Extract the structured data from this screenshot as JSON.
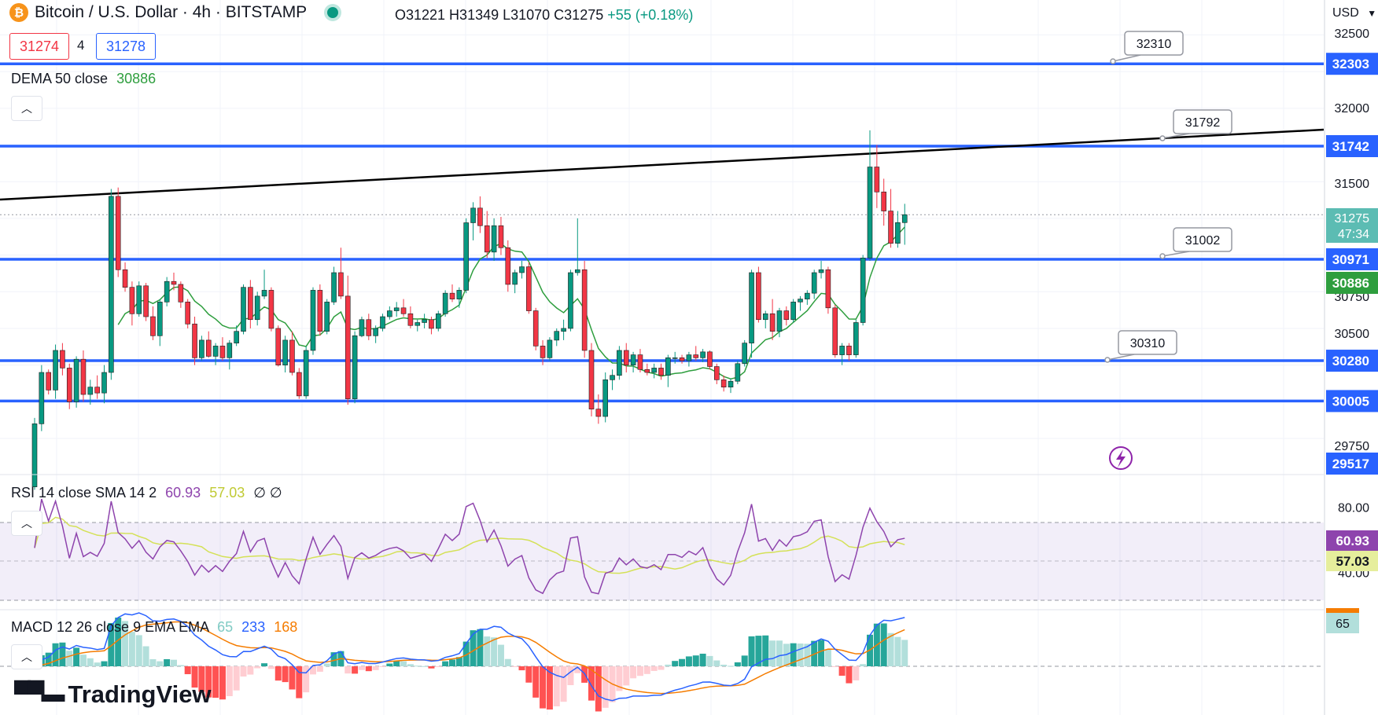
{
  "header": {
    "symbol_title": "Bitcoin / U.S. Dollar · 4h · BITSTAMP",
    "btc_icon_glyph": "₿",
    "ohlc": "O31221 H31349 L31070 C31275",
    "change": "+55 (+0.18%)",
    "bid": "31274",
    "spread": "4",
    "ask": "31278"
  },
  "indicators": {
    "dema_label": "DEMA 50 close",
    "dema_value": "30886",
    "rsi_label": "RSI 14 close SMA 14 2",
    "rsi_value": "60.93",
    "rsi_sma_value": "57.03",
    "rsi_empty": "∅ ∅",
    "macd_label": "MACD 12 26 close 9 EMA EMA",
    "macd_hist": "65",
    "macd_line": "233",
    "macd_signal": "168"
  },
  "price_axis": {
    "currency": "USD",
    "ticks": [
      "32500",
      "32000",
      "31500",
      "30750",
      "30500",
      "29750"
    ],
    "level_labels": [
      "32303",
      "31742",
      "30971",
      "30280",
      "30005",
      "29517"
    ],
    "current_price": "31275",
    "countdown": "47:34",
    "dema_tag": "30886"
  },
  "rsi_axis": {
    "ticks": [
      "80.00",
      "40.00"
    ],
    "rsi_tag": "60.93",
    "sma_tag": "57.03"
  },
  "macd_axis": {
    "hist_tag": "65"
  },
  "callouts": [
    "32310",
    "31792",
    "31002",
    "30310"
  ],
  "branding": {
    "logo_text": "TradingView"
  },
  "colors": {
    "up": "#089981",
    "down": "#f23645",
    "level_line": "#2962ff",
    "trend_line": "#000000",
    "dema": "#2e9e3e",
    "rsi": "#8e44ad",
    "rsi_sma": "#d4e157",
    "macd_line": "#2962ff",
    "macd_signal": "#f57c00",
    "hist_up_strong": "#26a69a",
    "hist_up_weak": "#b2dfdb",
    "hist_down_strong": "#ff5252",
    "hist_down_weak": "#ffcdd2"
  },
  "chart_data": {
    "type": "candlestick",
    "interval": "4h",
    "price_range": [
      29450,
      32700
    ],
    "horizontal_levels": [
      32303,
      31742,
      30971,
      30280,
      30005
    ],
    "trend_line_label": 31792,
    "callout_prices": [
      32310,
      31792,
      31002,
      30310
    ],
    "candles_ohlc": [
      [
        29420,
        29890,
        29400,
        29850
      ],
      [
        29850,
        30250,
        29800,
        30200
      ],
      [
        30200,
        30220,
        30050,
        30080
      ],
      [
        30080,
        30390,
        30020,
        30350
      ],
      [
        30350,
        30400,
        30180,
        30230
      ],
      [
        30230,
        30260,
        29950,
        30000
      ],
      [
        30000,
        30310,
        29960,
        30290
      ],
      [
        30290,
        30350,
        30000,
        30050
      ],
      [
        30050,
        30150,
        29980,
        30100
      ],
      [
        30100,
        30180,
        30020,
        30060
      ],
      [
        30060,
        30250,
        29990,
        30200
      ],
      [
        30200,
        31450,
        30150,
        31400
      ],
      [
        31400,
        31460,
        30850,
        30900
      ],
      [
        30900,
        30950,
        30750,
        30780
      ],
      [
        30780,
        30820,
        30520,
        30600
      ],
      [
        30600,
        30820,
        30580,
        30790
      ],
      [
        30790,
        30810,
        30550,
        30580
      ],
      [
        30580,
        30650,
        30420,
        30450
      ],
      [
        30450,
        30700,
        30380,
        30680
      ],
      [
        30680,
        30850,
        30650,
        30820
      ],
      [
        30820,
        30880,
        30760,
        30800
      ],
      [
        30800,
        30820,
        30640,
        30680
      ],
      [
        30680,
        30700,
        30500,
        30530
      ],
      [
        30530,
        30580,
        30250,
        30300
      ],
      [
        30300,
        30450,
        30280,
        30420
      ],
      [
        30420,
        30480,
        30300,
        30310
      ],
      [
        30310,
        30400,
        30250,
        30380
      ],
      [
        30380,
        30440,
        30280,
        30300
      ],
      [
        30300,
        30420,
        30220,
        30400
      ],
      [
        30400,
        30520,
        30380,
        30480
      ],
      [
        30480,
        30800,
        30460,
        30780
      ],
      [
        30780,
        30830,
        30500,
        30560
      ],
      [
        30560,
        30750,
        30520,
        30720
      ],
      [
        30720,
        30900,
        30700,
        30760
      ],
      [
        30760,
        30780,
        30480,
        30500
      ],
      [
        30500,
        30520,
        30240,
        30250
      ],
      [
        30250,
        30450,
        30200,
        30420
      ],
      [
        30420,
        30480,
        30180,
        30200
      ],
      [
        30200,
        30230,
        30020,
        30040
      ],
      [
        30040,
        30380,
        30020,
        30350
      ],
      [
        30350,
        30780,
        30320,
        30760
      ],
      [
        30760,
        30800,
        30450,
        30480
      ],
      [
        30480,
        30700,
        30460,
        30680
      ],
      [
        30680,
        30920,
        30660,
        30880
      ],
      [
        30880,
        31050,
        30700,
        30720
      ],
      [
        30720,
        30860,
        29980,
        30020
      ],
      [
        30020,
        30480,
        29990,
        30450
      ],
      [
        30450,
        30580,
        30440,
        30560
      ],
      [
        30560,
        30600,
        30420,
        30450
      ],
      [
        30450,
        30520,
        30400,
        30500
      ],
      [
        30500,
        30600,
        30480,
        30580
      ],
      [
        30580,
        30650,
        30560,
        30620
      ],
      [
        30620,
        30680,
        30580,
        30640
      ],
      [
        30640,
        30700,
        30580,
        30600
      ],
      [
        30600,
        30650,
        30500,
        30520
      ],
      [
        30520,
        30560,
        30480,
        30540
      ],
      [
        30540,
        30600,
        30500,
        30560
      ],
      [
        30560,
        30580,
        30460,
        30500
      ],
      [
        30500,
        30620,
        30480,
        30600
      ],
      [
        30600,
        30760,
        30580,
        30740
      ],
      [
        30740,
        30800,
        30680,
        30700
      ],
      [
        30700,
        30780,
        30640,
        30760
      ],
      [
        30760,
        31250,
        30740,
        31220
      ],
      [
        31220,
        31360,
        31100,
        31320
      ],
      [
        31320,
        31400,
        31150,
        31200
      ],
      [
        31200,
        31300,
        30980,
        31020
      ],
      [
        31020,
        31250,
        30960,
        31200
      ],
      [
        31200,
        31260,
        31000,
        31050
      ],
      [
        31050,
        31100,
        30750,
        30800
      ],
      [
        30800,
        30900,
        30740,
        30880
      ],
      [
        30880,
        30960,
        30840,
        30920
      ],
      [
        30920,
        30950,
        30600,
        30620
      ],
      [
        30620,
        30640,
        30350,
        30380
      ],
      [
        30380,
        30420,
        30250,
        30300
      ],
      [
        30300,
        30440,
        30280,
        30420
      ],
      [
        30420,
        30500,
        30380,
        30480
      ],
      [
        30480,
        30560,
        30420,
        30500
      ],
      [
        30500,
        30900,
        30480,
        30880
      ],
      [
        30880,
        31250,
        30860,
        30900
      ],
      [
        30900,
        30960,
        30300,
        30350
      ],
      [
        30350,
        30400,
        29900,
        29950
      ],
      [
        29950,
        30050,
        29850,
        29900
      ],
      [
        29900,
        30200,
        29860,
        30150
      ],
      [
        30150,
        30220,
        30080,
        30180
      ],
      [
        30180,
        30380,
        30150,
        30350
      ],
      [
        30350,
        30400,
        30200,
        30250
      ],
      [
        30250,
        30340,
        30200,
        30320
      ],
      [
        30320,
        30360,
        30200,
        30220
      ],
      [
        30220,
        30260,
        30180,
        30200
      ],
      [
        30200,
        30260,
        30160,
        30230
      ],
      [
        30230,
        30260,
        30150,
        30180
      ],
      [
        30180,
        30320,
        30100,
        30300
      ],
      [
        30300,
        30340,
        30260,
        30300
      ],
      [
        30300,
        30320,
        30260,
        30280
      ],
      [
        30280,
        30340,
        30240,
        30320
      ],
      [
        30320,
        30380,
        30280,
        30300
      ],
      [
        30300,
        30360,
        30270,
        30340
      ],
      [
        30340,
        30350,
        30220,
        30240
      ],
      [
        30240,
        30260,
        30120,
        30150
      ],
      [
        30150,
        30180,
        30070,
        30100
      ],
      [
        30100,
        30160,
        30060,
        30140
      ],
      [
        30140,
        30280,
        30120,
        30260
      ],
      [
        30260,
        30420,
        30240,
        30400
      ],
      [
        30400,
        30900,
        30300,
        30880
      ],
      [
        30880,
        30920,
        30540,
        30560
      ],
      [
        30560,
        30620,
        30500,
        30600
      ],
      [
        30600,
        30700,
        30420,
        30480
      ],
      [
        30480,
        30640,
        30440,
        30620
      ],
      [
        30620,
        30650,
        30520,
        30560
      ],
      [
        30560,
        30700,
        30540,
        30680
      ],
      [
        30680,
        30720,
        30620,
        30700
      ],
      [
        30700,
        30760,
        30660,
        30740
      ],
      [
        30740,
        30900,
        30700,
        30880
      ],
      [
        30880,
        30960,
        30840,
        30900
      ],
      [
        30900,
        30920,
        30600,
        30640
      ],
      [
        30640,
        30660,
        30300,
        30320
      ],
      [
        30320,
        30400,
        30250,
        30380
      ],
      [
        30380,
        30400,
        30280,
        30320
      ],
      [
        30320,
        30560,
        30300,
        30540
      ],
      [
        30540,
        31000,
        30520,
        30980
      ],
      [
        30980,
        31850,
        30960,
        31600
      ],
      [
        31600,
        31750,
        31320,
        31430
      ],
      [
        31430,
        31520,
        31200,
        31300
      ],
      [
        31300,
        31450,
        31050,
        31080
      ],
      [
        31080,
        31300,
        31050,
        31221
      ],
      [
        31221,
        31349,
        31070,
        31275
      ]
    ],
    "rsi_range": [
      20,
      100
    ],
    "rsi_bands": [
      70,
      30
    ],
    "rsi_last": 60.93,
    "rsi_sma_last": 57.03,
    "macd_last": {
      "histogram": 65,
      "macd": 233,
      "signal": 168
    }
  }
}
